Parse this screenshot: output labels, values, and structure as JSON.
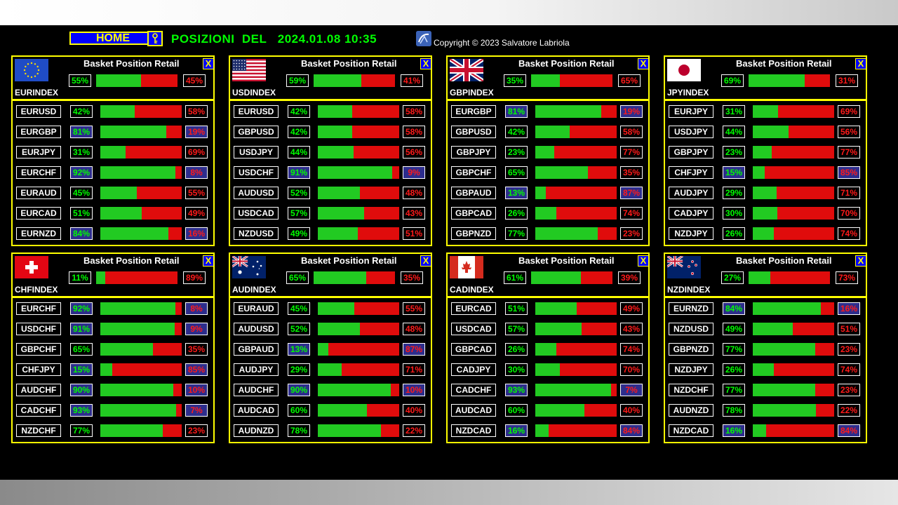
{
  "header": {
    "home_label": "HOME",
    "title": "POSIZIONI  DEL   2024.01.08 10:35",
    "copyright": "Copyright © 2023 Salvatore Labriola"
  },
  "panel_title": "Basket Position Retail",
  "close_label": "X",
  "colors": {
    "buy": "#00ff00",
    "sell": "#ff1a1a",
    "frame": "#ffff00",
    "highlight": "#2d2d8c"
  },
  "panels": [
    {
      "flag": "eu-flag-icon",
      "index": "EURINDEX",
      "buy": 55,
      "sell": 45,
      "buy_label": "55%",
      "sell_label": "45%",
      "pairs": [
        {
          "name": "EURUSD",
          "buy": 42,
          "sell": 58,
          "buy_label": "42%",
          "sell_label": "58%"
        },
        {
          "name": "EURGBP",
          "buy": 81,
          "sell": 19,
          "buy_label": "81%",
          "sell_label": "19%"
        },
        {
          "name": "EURJPY",
          "buy": 31,
          "sell": 69,
          "buy_label": "31%",
          "sell_label": "69%"
        },
        {
          "name": "EURCHF",
          "buy": 92,
          "sell": 8,
          "buy_label": "92%",
          "sell_label": "8%"
        },
        {
          "name": "EURAUD",
          "buy": 45,
          "sell": 55,
          "buy_label": "45%",
          "sell_label": "55%"
        },
        {
          "name": "EURCAD",
          "buy": 51,
          "sell": 49,
          "buy_label": "51%",
          "sell_label": "49%"
        },
        {
          "name": "EURNZD",
          "buy": 84,
          "sell": 16,
          "buy_label": "84%",
          "sell_label": "16%"
        }
      ]
    },
    {
      "flag": "us-flag-icon",
      "index": "USDINDEX",
      "buy": 59,
      "sell": 41,
      "buy_label": "59%",
      "sell_label": "41%",
      "pairs": [
        {
          "name": "EURUSD",
          "buy": 42,
          "sell": 58,
          "buy_label": "42%",
          "sell_label": "58%"
        },
        {
          "name": "GBPUSD",
          "buy": 42,
          "sell": 58,
          "buy_label": "42%",
          "sell_label": "58%"
        },
        {
          "name": "USDJPY",
          "buy": 44,
          "sell": 56,
          "buy_label": "44%",
          "sell_label": "56%"
        },
        {
          "name": "USDCHF",
          "buy": 91,
          "sell": 9,
          "buy_label": "91%",
          "sell_label": "9%"
        },
        {
          "name": "AUDUSD",
          "buy": 52,
          "sell": 48,
          "buy_label": "52%",
          "sell_label": "48%"
        },
        {
          "name": "USDCAD",
          "buy": 57,
          "sell": 43,
          "buy_label": "57%",
          "sell_label": "43%"
        },
        {
          "name": "NZDUSD",
          "buy": 49,
          "sell": 51,
          "buy_label": "49%",
          "sell_label": "51%"
        }
      ]
    },
    {
      "flag": "uk-flag-icon",
      "index": "GBPINDEX",
      "buy": 35,
      "sell": 65,
      "buy_label": "35%",
      "sell_label": "65%",
      "pairs": [
        {
          "name": "EURGBP",
          "buy": 81,
          "sell": 19,
          "buy_label": "81%",
          "sell_label": "19%"
        },
        {
          "name": "GBPUSD",
          "buy": 42,
          "sell": 58,
          "buy_label": "42%",
          "sell_label": "58%"
        },
        {
          "name": "GBPJPY",
          "buy": 23,
          "sell": 77,
          "buy_label": "23%",
          "sell_label": "77%"
        },
        {
          "name": "GBPCHF",
          "buy": 65,
          "sell": 35,
          "buy_label": "65%",
          "sell_label": "35%"
        },
        {
          "name": "GBPAUD",
          "buy": 13,
          "sell": 87,
          "buy_label": "13%",
          "sell_label": "87%"
        },
        {
          "name": "GBPCAD",
          "buy": 26,
          "sell": 74,
          "buy_label": "26%",
          "sell_label": "74%"
        },
        {
          "name": "GBPNZD",
          "buy": 77,
          "sell": 23,
          "buy_label": "77%",
          "sell_label": "23%"
        }
      ]
    },
    {
      "flag": "jp-flag-icon",
      "index": "JPYINDEX",
      "buy": 69,
      "sell": 31,
      "buy_label": "69%",
      "sell_label": "31%",
      "pairs": [
        {
          "name": "EURJPY",
          "buy": 31,
          "sell": 69,
          "buy_label": "31%",
          "sell_label": "69%"
        },
        {
          "name": "USDJPY",
          "buy": 44,
          "sell": 56,
          "buy_label": "44%",
          "sell_label": "56%"
        },
        {
          "name": "GBPJPY",
          "buy": 23,
          "sell": 77,
          "buy_label": "23%",
          "sell_label": "77%"
        },
        {
          "name": "CHFJPY",
          "buy": 15,
          "sell": 85,
          "buy_label": "15%",
          "sell_label": "85%"
        },
        {
          "name": "AUDJPY",
          "buy": 29,
          "sell": 71,
          "buy_label": "29%",
          "sell_label": "71%"
        },
        {
          "name": "CADJPY",
          "buy": 30,
          "sell": 70,
          "buy_label": "30%",
          "sell_label": "70%"
        },
        {
          "name": "NZDJPY",
          "buy": 26,
          "sell": 74,
          "buy_label": "26%",
          "sell_label": "74%"
        }
      ]
    },
    {
      "flag": "ch-flag-icon",
      "index": "CHFINDEX",
      "buy": 11,
      "sell": 89,
      "buy_label": "11%",
      "sell_label": "89%",
      "pairs": [
        {
          "name": "EURCHF",
          "buy": 92,
          "sell": 8,
          "buy_label": "92%",
          "sell_label": "8%"
        },
        {
          "name": "USDCHF",
          "buy": 91,
          "sell": 9,
          "buy_label": "91%",
          "sell_label": "9%"
        },
        {
          "name": "GBPCHF",
          "buy": 65,
          "sell": 35,
          "buy_label": "65%",
          "sell_label": "35%"
        },
        {
          "name": "CHFJPY",
          "buy": 15,
          "sell": 85,
          "buy_label": "15%",
          "sell_label": "85%"
        },
        {
          "name": "AUDCHF",
          "buy": 90,
          "sell": 10,
          "buy_label": "90%",
          "sell_label": "10%"
        },
        {
          "name": "CADCHF",
          "buy": 93,
          "sell": 7,
          "buy_label": "93%",
          "sell_label": "7%"
        },
        {
          "name": "NZDCHF",
          "buy": 77,
          "sell": 23,
          "buy_label": "77%",
          "sell_label": "23%"
        }
      ]
    },
    {
      "flag": "au-flag-icon",
      "index": "AUDINDEX",
      "buy": 65,
      "sell": 35,
      "buy_label": "65%",
      "sell_label": "35%",
      "pairs": [
        {
          "name": "EURAUD",
          "buy": 45,
          "sell": 55,
          "buy_label": "45%",
          "sell_label": "55%"
        },
        {
          "name": "AUDUSD",
          "buy": 52,
          "sell": 48,
          "buy_label": "52%",
          "sell_label": "48%"
        },
        {
          "name": "GBPAUD",
          "buy": 13,
          "sell": 87,
          "buy_label": "13%",
          "sell_label": "87%"
        },
        {
          "name": "AUDJPY",
          "buy": 29,
          "sell": 71,
          "buy_label": "29%",
          "sell_label": "71%"
        },
        {
          "name": "AUDCHF",
          "buy": 90,
          "sell": 10,
          "buy_label": "90%",
          "sell_label": "10%"
        },
        {
          "name": "AUDCAD",
          "buy": 60,
          "sell": 40,
          "buy_label": "60%",
          "sell_label": "40%"
        },
        {
          "name": "AUDNZD",
          "buy": 78,
          "sell": 22,
          "buy_label": "78%",
          "sell_label": "22%"
        }
      ]
    },
    {
      "flag": "ca-flag-icon",
      "index": "CADINDEX",
      "buy": 61,
      "sell": 39,
      "buy_label": "61%",
      "sell_label": "39%",
      "pairs": [
        {
          "name": "EURCAD",
          "buy": 51,
          "sell": 49,
          "buy_label": "51%",
          "sell_label": "49%"
        },
        {
          "name": "USDCAD",
          "buy": 57,
          "sell": 43,
          "buy_label": "57%",
          "sell_label": "43%"
        },
        {
          "name": "GBPCAD",
          "buy": 26,
          "sell": 74,
          "buy_label": "26%",
          "sell_label": "74%"
        },
        {
          "name": "CADJPY",
          "buy": 30,
          "sell": 70,
          "buy_label": "30%",
          "sell_label": "70%"
        },
        {
          "name": "CADCHF",
          "buy": 93,
          "sell": 7,
          "buy_label": "93%",
          "sell_label": "7%"
        },
        {
          "name": "AUDCAD",
          "buy": 60,
          "sell": 40,
          "buy_label": "60%",
          "sell_label": "40%"
        },
        {
          "name": "NZDCAD",
          "buy": 16,
          "sell": 84,
          "buy_label": "16%",
          "sell_label": "84%"
        }
      ]
    },
    {
      "flag": "nz-flag-icon",
      "index": "NZDINDEX",
      "buy": 27,
      "sell": 73,
      "buy_label": "27%",
      "sell_label": "73%",
      "pairs": [
        {
          "name": "EURNZD",
          "buy": 84,
          "sell": 16,
          "buy_label": "84%",
          "sell_label": "16%"
        },
        {
          "name": "NZDUSD",
          "buy": 49,
          "sell": 51,
          "buy_label": "49%",
          "sell_label": "51%"
        },
        {
          "name": "GBPNZD",
          "buy": 77,
          "sell": 23,
          "buy_label": "77%",
          "sell_label": "23%"
        },
        {
          "name": "NZDJPY",
          "buy": 26,
          "sell": 74,
          "buy_label": "26%",
          "sell_label": "74%"
        },
        {
          "name": "NZDCHF",
          "buy": 77,
          "sell": 23,
          "buy_label": "77%",
          "sell_label": "23%"
        },
        {
          "name": "AUDNZD",
          "buy": 78,
          "sell": 22,
          "buy_label": "78%",
          "sell_label": "22%"
        },
        {
          "name": "NZDCAD",
          "buy": 16,
          "sell": 84,
          "buy_label": "16%",
          "sell_label": "84%"
        }
      ]
    }
  ]
}
